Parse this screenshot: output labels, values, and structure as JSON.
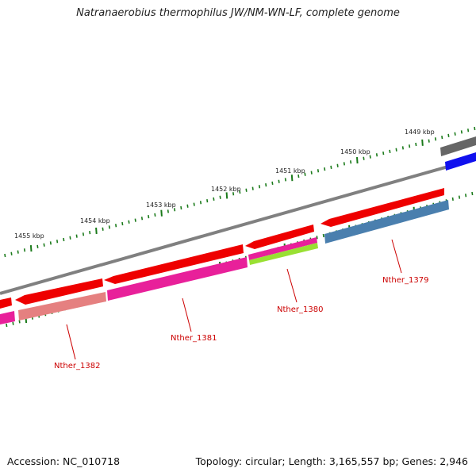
{
  "title": "Natranaerobius thermophilus JW/NM-WN-LF, complete genome",
  "accession": "Accession: NC_010718",
  "topology": "Topology: circular; Length: 3,165,557 bp; Genes: 2,946",
  "kbp_ticks": [
    "1449 kbp",
    "1450 kbp",
    "1451 kbp",
    "1452 kbp",
    "1453 kbp",
    "1454 kbp",
    "1455 kbp"
  ],
  "gene_labels": [
    "Nther_1379",
    "Nther_1380",
    "Nther_1381",
    "Nther_1382"
  ],
  "colors": {
    "cds": "#ee0000",
    "magenta": "#e8209a",
    "salmon": "#e58080",
    "lime": "#99e033",
    "steel": "#4a7fae",
    "grey": "#666666",
    "blue": "#1010ee",
    "backbone": "#808080",
    "tick": "#1a7a1a",
    "label": "#cc0000"
  }
}
